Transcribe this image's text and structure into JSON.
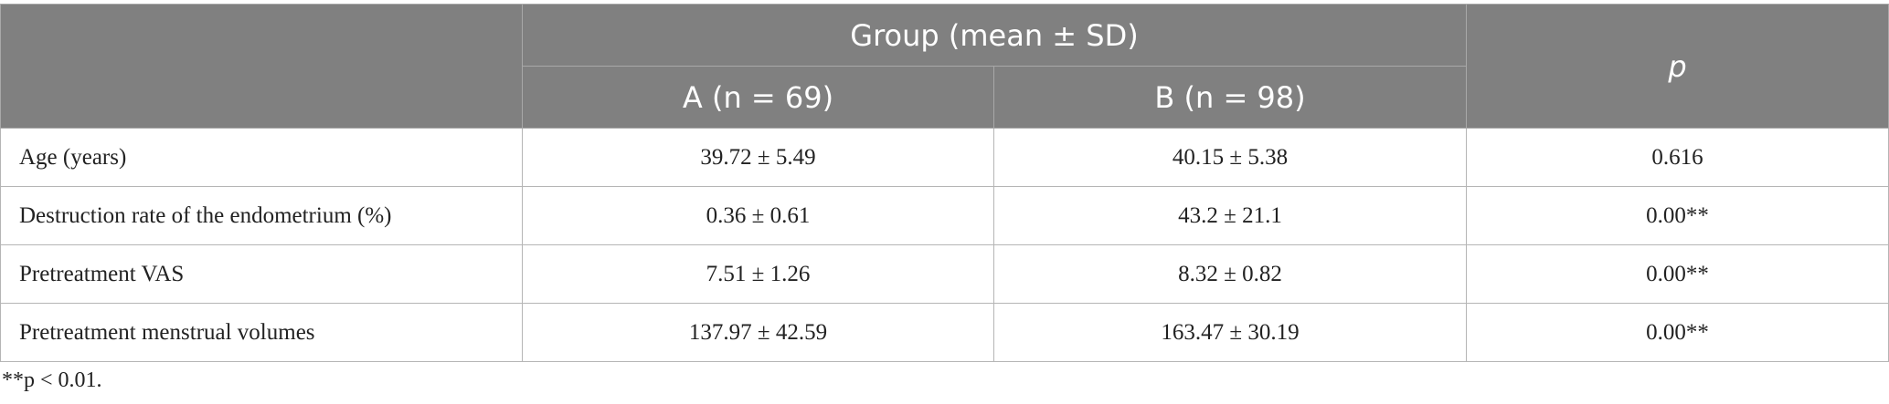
{
  "table": {
    "header": {
      "group": "Group (mean ± SD)",
      "p": "p",
      "columns": [
        "A (n = 69)",
        "B (n = 98)"
      ]
    },
    "rows": [
      [
        "Age (years)",
        "39.72 ± 5.49",
        "40.15 ± 5.38",
        "0.616"
      ],
      [
        "Destruction rate of the endometrium (%)",
        "0.36 ± 0.61",
        "43.2 ± 21.1",
        "0.00**"
      ],
      [
        "Pretreatment VAS",
        "7.51 ± 1.26",
        "8.32 ± 0.82",
        "0.00**"
      ],
      [
        "Pretreatment menstrual volumes",
        "137.97 ± 42.59",
        "163.47 ± 30.19",
        "0.00**"
      ]
    ]
  },
  "footnote": "**p < 0.01."
}
